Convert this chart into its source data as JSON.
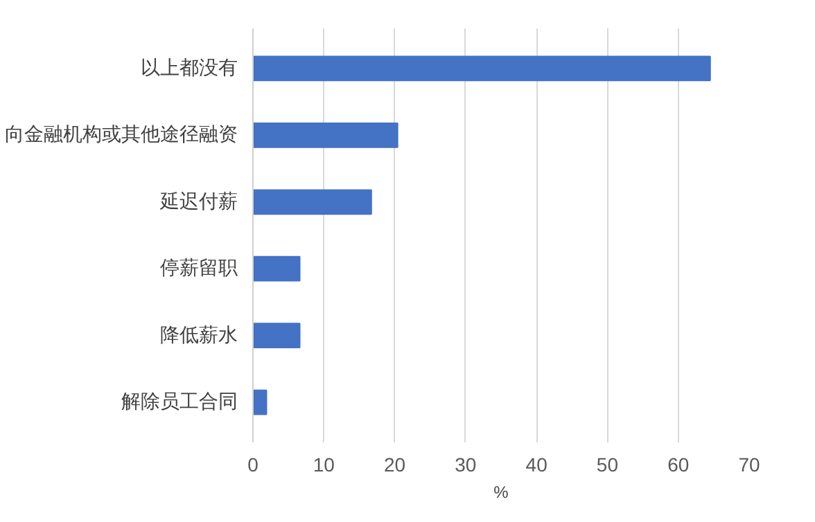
{
  "chart_data": {
    "type": "bar",
    "orientation": "horizontal",
    "xlabel": "%",
    "categories": [
      "以上都没有",
      "向金融机构或其他途径融资",
      "延迟付薪",
      "停薪留职",
      "降低薪水",
      "解除员工合同"
    ],
    "values": [
      64.5,
      20.4,
      16.7,
      6.6,
      6.6,
      1.9
    ],
    "color": "#4472c4",
    "xlim": [
      0,
      70
    ],
    "xticks": [
      0,
      10,
      20,
      30,
      40,
      50,
      60,
      70
    ],
    "grid": "x"
  }
}
